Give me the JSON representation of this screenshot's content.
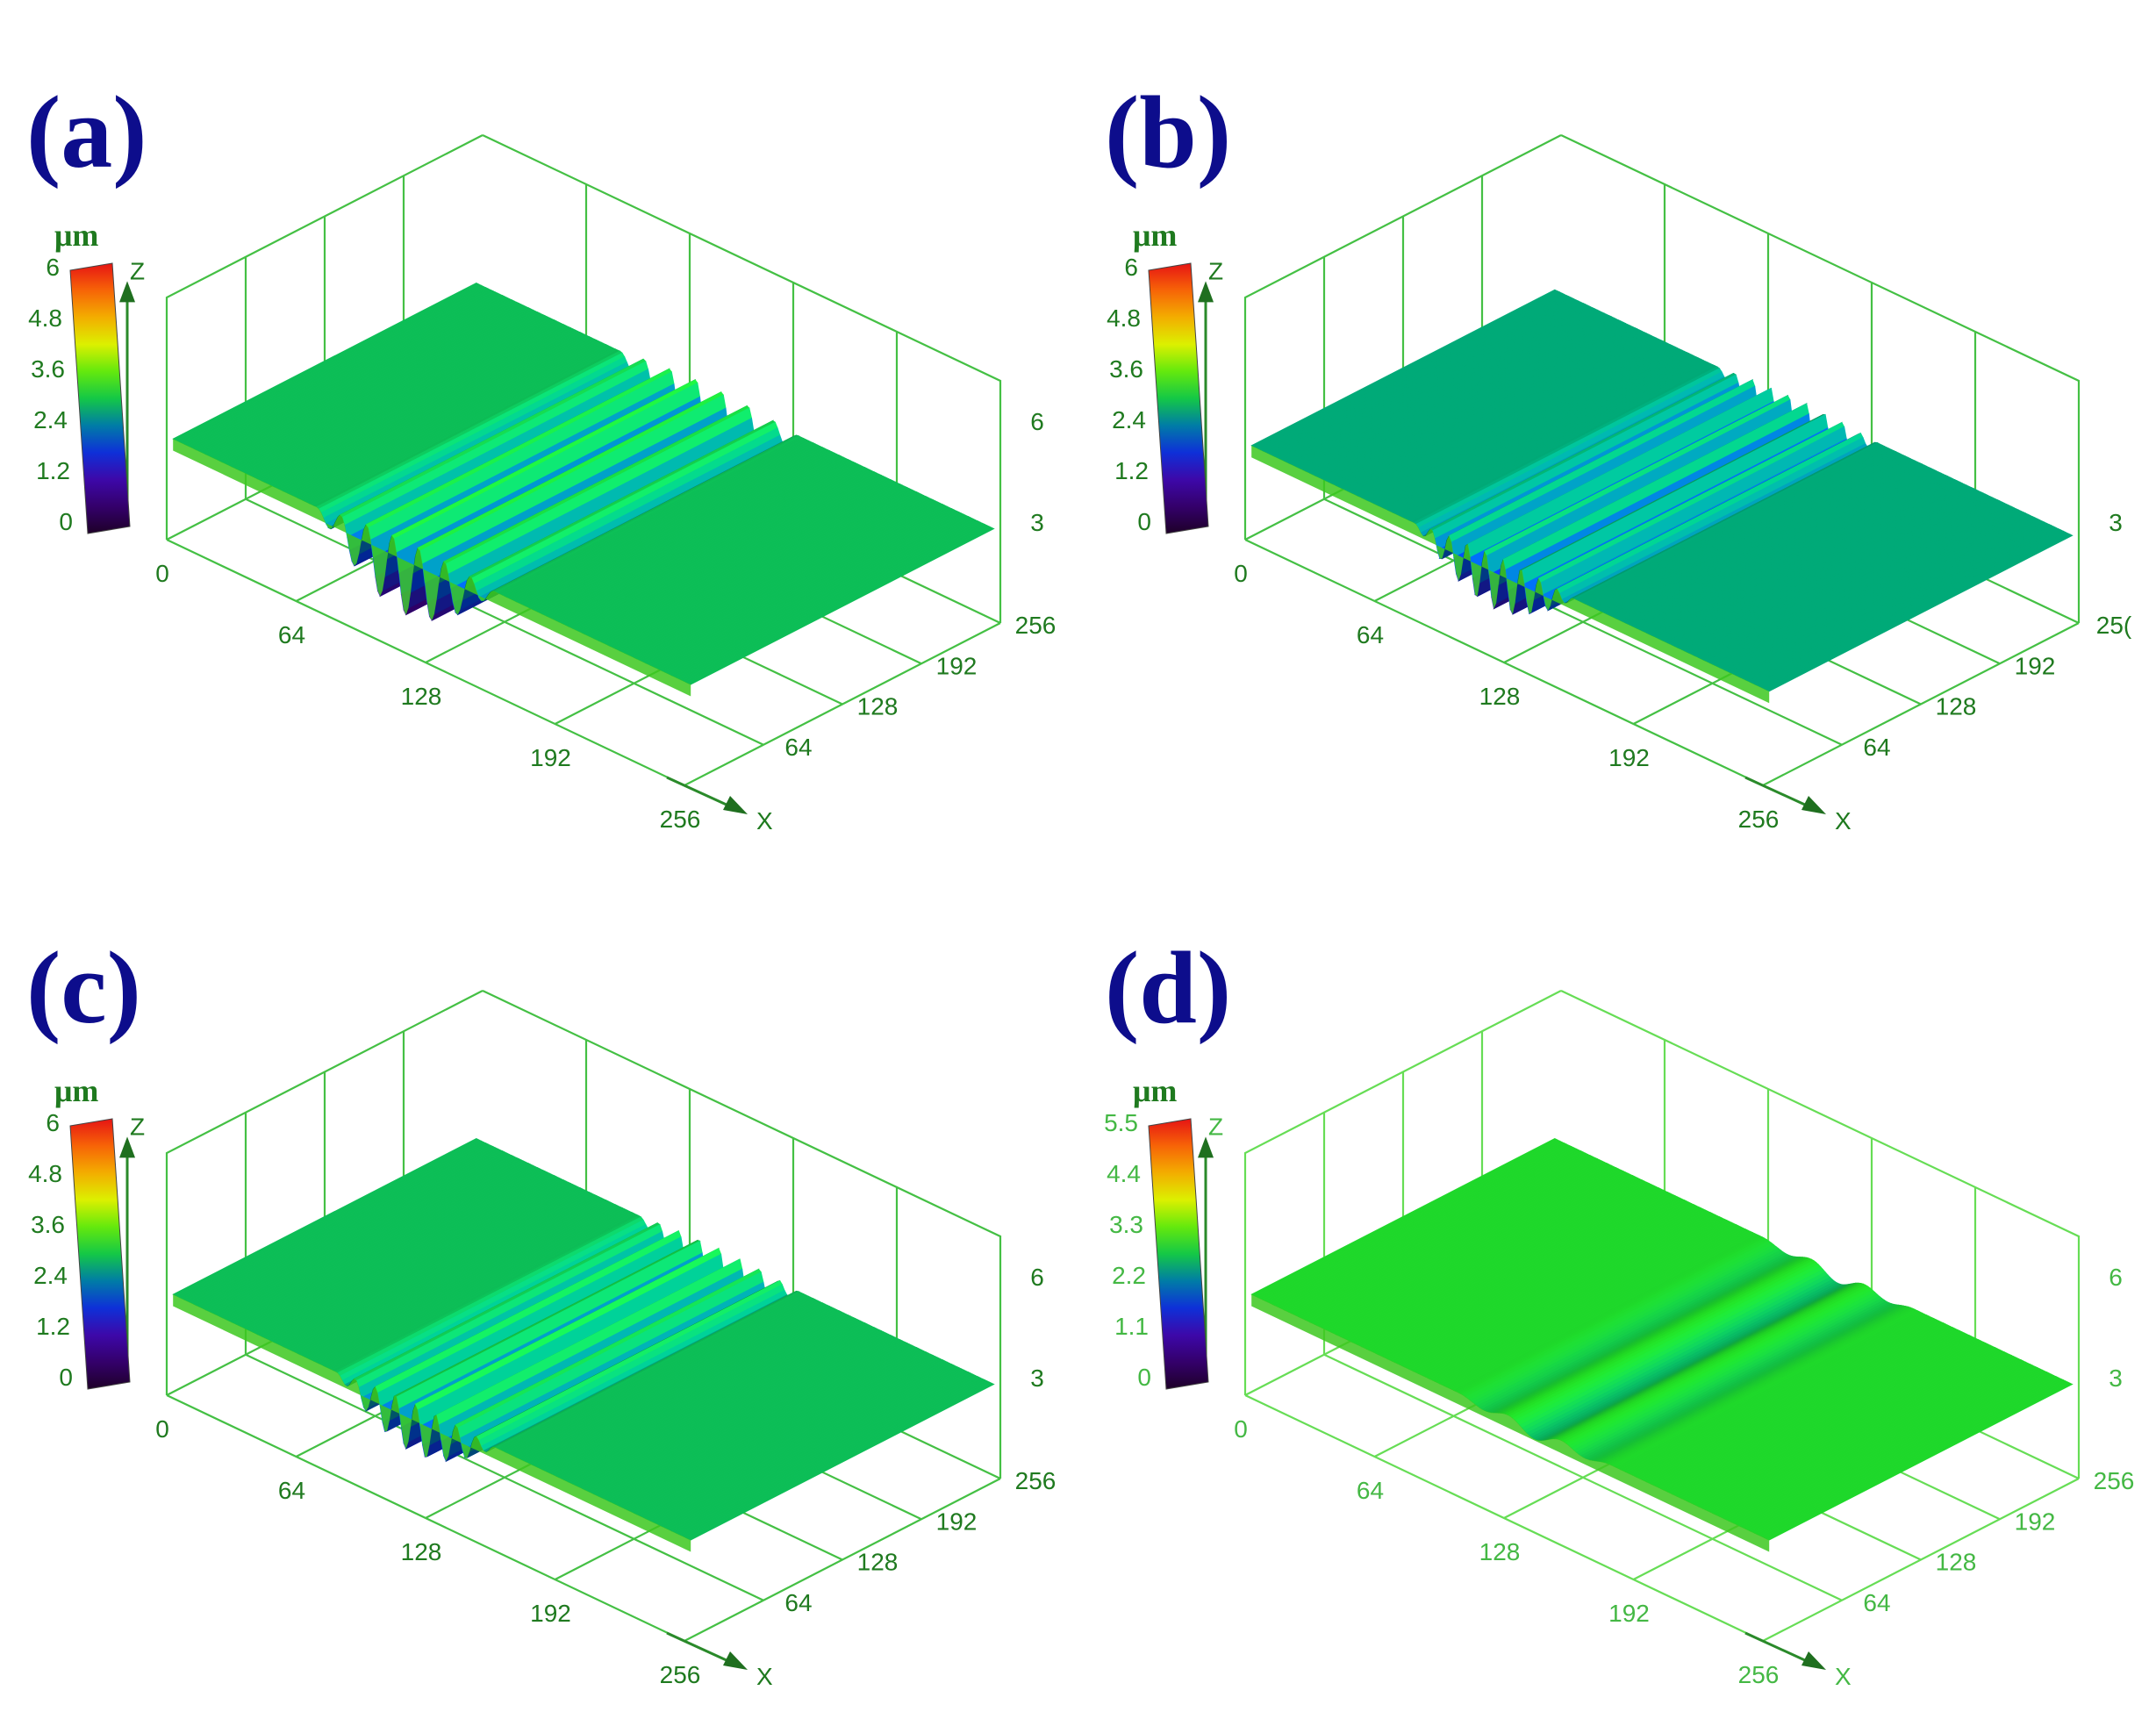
{
  "chart_data": [
    {
      "type": "surface3d",
      "panel_label": "(a)",
      "unit": "μm",
      "colorbar_ticks": [
        "6",
        "4.8",
        "3.6",
        "2.4",
        "1.2",
        "0"
      ],
      "x_axis": {
        "name": "X",
        "ticks": [
          "0",
          "64",
          "128",
          "192",
          "256"
        ]
      },
      "y_axis": {
        "ticks": [
          "64",
          "128",
          "192",
          "256"
        ]
      },
      "z_axis": {
        "name": "Z",
        "ticks": [
          "3",
          "6"
        ]
      },
      "base_level_um": 2.9,
      "features": {
        "ridges": 7,
        "depth_min_um": 1.0,
        "band_x_range": [
          70,
          160
        ]
      },
      "grid_color": "#44c044",
      "label_color": "#1f7a1f"
    },
    {
      "type": "surface3d",
      "panel_label": "(b)",
      "unit": "μm",
      "colorbar_ticks": [
        "6",
        "4.8",
        "3.6",
        "2.4",
        "1.2",
        "0"
      ],
      "x_axis": {
        "name": "X",
        "ticks": [
          "0",
          "64",
          "128",
          "192",
          "256"
        ]
      },
      "y_axis": {
        "ticks": [
          "64",
          "128",
          "192",
          "25("
        ]
      },
      "z_axis": {
        "name": "Z",
        "ticks": [
          "3"
        ]
      },
      "base_level_um": 2.7,
      "features": {
        "ridges": 9,
        "depth_min_um": 1.3,
        "band_x_range": [
          80,
          160
        ]
      },
      "grid_color": "#44c044",
      "label_color": "#1f7a1f"
    },
    {
      "type": "surface3d",
      "panel_label": "(c)",
      "unit": "μm",
      "colorbar_ticks": [
        "6",
        "4.8",
        "3.6",
        "2.4",
        "1.2",
        "0"
      ],
      "x_axis": {
        "name": "X",
        "ticks": [
          "0",
          "64",
          "128",
          "192",
          "256"
        ]
      },
      "y_axis": {
        "ticks": [
          "64",
          "128",
          "192",
          "256"
        ]
      },
      "z_axis": {
        "name": "Z",
        "ticks": [
          "3",
          "6"
        ]
      },
      "base_level_um": 2.9,
      "features": {
        "ridges": 8,
        "depth_min_um": 1.6,
        "band_x_range": [
          80,
          160
        ]
      },
      "grid_color": "#44c044",
      "label_color": "#1f7a1f"
    },
    {
      "type": "surface3d",
      "panel_label": "(d)",
      "unit": "μm",
      "colorbar_ticks": [
        "5.5",
        "4.4",
        "3.3",
        "2.2",
        "1.1",
        "0"
      ],
      "x_axis": {
        "name": "X",
        "ticks": [
          "0",
          "64",
          "128",
          "192",
          "256"
        ]
      },
      "y_axis": {
        "ticks": [
          "64",
          "128",
          "192",
          "256"
        ]
      },
      "z_axis": {
        "name": "Z",
        "ticks": [
          "3",
          "6"
        ]
      },
      "base_level_um": 2.9,
      "features": {
        "ridges": 3,
        "depth_min_um": 2.6,
        "band_x_range": [
          100,
          180
        ]
      },
      "grid_color": "#66dd55",
      "label_color": "#44b844"
    }
  ]
}
